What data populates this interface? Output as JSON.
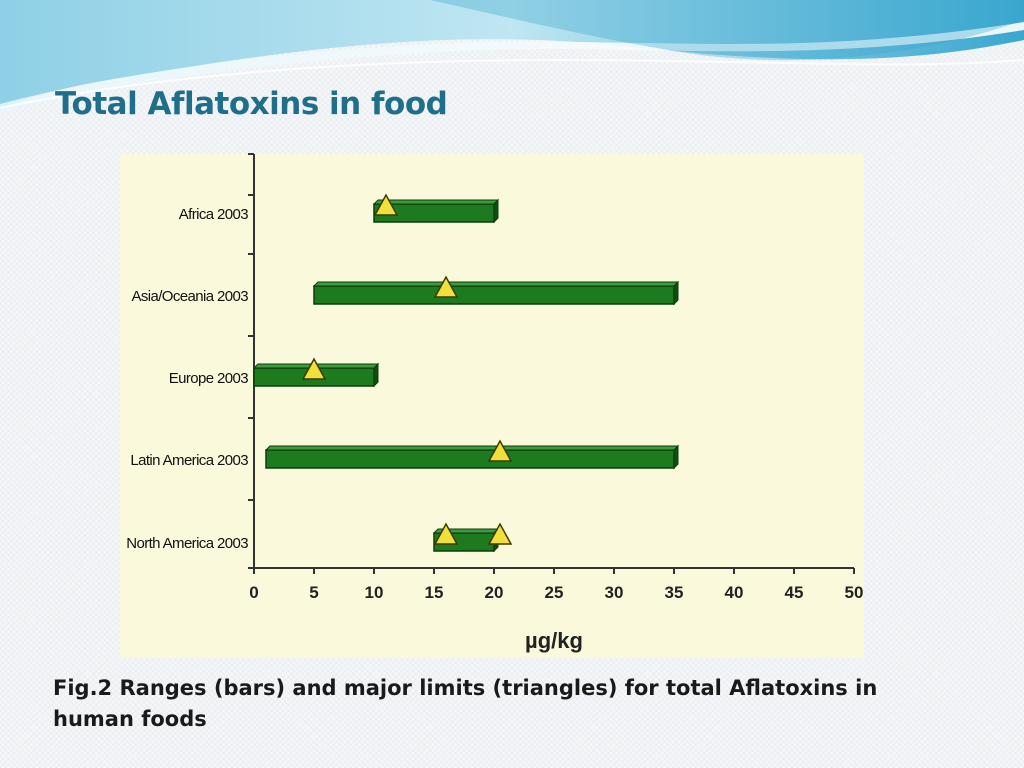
{
  "slide": {
    "title": "Total Aflatoxins in food",
    "caption": "Fig.2  Ranges (bars) and major limits (triangles) for total Aflatoxins in human foods"
  },
  "colors": {
    "title": "#1f6f8b",
    "bar_fill": "#1e7a1e",
    "bar_edge": "#0b3d0b",
    "triangle_fill": "#f2e03a",
    "triangle_edge": "#3a3a00",
    "chart_background": "#fbf9dc",
    "wave_light": "#bfe6f2",
    "wave_dark": "#3aa7cf"
  },
  "chart_data": {
    "type": "bar",
    "orientation": "horizontal",
    "title": "",
    "xlabel": "µg/kg",
    "ylabel": "",
    "xlim": [
      0,
      50
    ],
    "xticks": [
      0,
      5,
      10,
      15,
      20,
      25,
      30,
      35,
      40,
      45,
      50
    ],
    "grid": false,
    "categories": [
      "Africa 2003",
      "Asia/Oceania 2003",
      "Europe 2003",
      "Latin America 2003",
      "North America 2003"
    ],
    "ranges": [
      {
        "category": "Africa 2003",
        "min": 10,
        "max": 20
      },
      {
        "category": "Asia/Oceania 2003",
        "min": 5,
        "max": 35
      },
      {
        "category": "Europe 2003",
        "min": 0,
        "max": 10
      },
      {
        "category": "Latin America 2003",
        "min": 1,
        "max": 35
      },
      {
        "category": "North America 2003",
        "min": 15,
        "max": 20
      }
    ],
    "limits": [
      {
        "category": "Africa 2003",
        "values": [
          11
        ]
      },
      {
        "category": "Asia/Oceania 2003",
        "values": [
          16
        ]
      },
      {
        "category": "Europe 2003",
        "values": [
          5
        ]
      },
      {
        "category": "Latin America 2003",
        "values": [
          20.5
        ]
      },
      {
        "category": "North America 2003",
        "values": [
          16,
          20.5
        ]
      }
    ]
  }
}
